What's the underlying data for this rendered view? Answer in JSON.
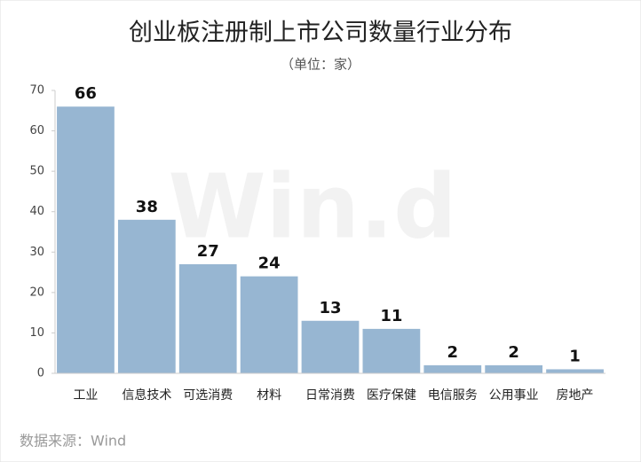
{
  "chart_data": {
    "type": "bar",
    "title": "创业板注册制上市公司数量行业分布",
    "subtitle": "（单位：家）",
    "categories": [
      "工业",
      "信息技术",
      "可选消费",
      "材料",
      "日常消费",
      "医疗保健",
      "电信服务",
      "公用事业",
      "房地产"
    ],
    "values": [
      66,
      38,
      27,
      24,
      13,
      11,
      2,
      2,
      1
    ],
    "color": "#97b6d2",
    "ylim": [
      0,
      70
    ],
    "yticks": [
      0,
      10,
      20,
      30,
      40,
      50,
      60,
      70
    ],
    "grid": false,
    "source": "数据来源：Wind",
    "watermark": "Win.d"
  }
}
